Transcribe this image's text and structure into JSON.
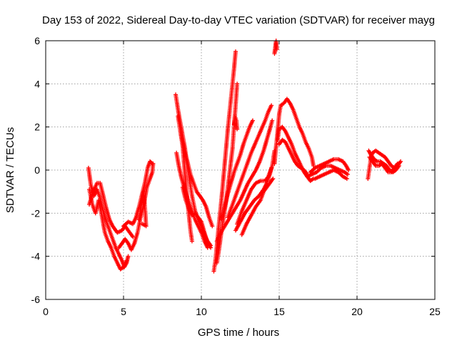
{
  "chart_data": {
    "type": "scatter",
    "title": "Day 153 of 2022, Sidereal Day-to-day VTEC variation (SDTVAR) for receiver mayg",
    "xlabel": "GPS time / hours",
    "ylabel": "SDTVAR / TECUs",
    "xlim": [
      0,
      25
    ],
    "ylim": [
      -6,
      6
    ],
    "xticks": [
      "0",
      "5",
      "10",
      "15",
      "20",
      "25"
    ],
    "yticks": [
      "-6",
      "-4",
      "-2",
      "0",
      "2",
      "4",
      "6"
    ],
    "grid": true,
    "marker": "plus",
    "colors": {
      "series": "#ff0000",
      "grid": "#a0a0a0",
      "axis": "#000000"
    },
    "series_tracks": [
      [
        [
          2.75,
          0.1
        ],
        [
          2.9,
          -0.7
        ],
        [
          3.1,
          -1.2
        ],
        [
          3.3,
          -0.9
        ],
        [
          3.5,
          -1.3
        ],
        [
          3.7,
          -1.9
        ],
        [
          3.9,
          -2.4
        ],
        [
          4.1,
          -2.8
        ],
        [
          4.3,
          -3.2
        ],
        [
          4.5,
          -3.6
        ],
        [
          4.7,
          -3.9
        ],
        [
          4.9,
          -4.2
        ],
        [
          5.05,
          -4.5
        ],
        [
          5.2,
          -4.3
        ],
        [
          5.3,
          -4.0
        ]
      ],
      [
        [
          2.8,
          -0.9
        ],
        [
          3.0,
          -1.6
        ],
        [
          3.2,
          -2.0
        ],
        [
          3.4,
          -1.4
        ],
        [
          3.6,
          -2.1
        ],
        [
          3.8,
          -2.9
        ],
        [
          4.0,
          -3.3
        ],
        [
          4.2,
          -3.6
        ],
        [
          4.4,
          -4.0
        ],
        [
          4.6,
          -4.3
        ],
        [
          4.8,
          -4.6
        ],
        [
          5.0,
          -4.5
        ],
        [
          5.2,
          -4.2
        ]
      ],
      [
        [
          2.8,
          -1.6
        ],
        [
          3.0,
          -1.1
        ],
        [
          3.3,
          -0.6
        ],
        [
          3.5,
          -0.6
        ],
        [
          3.7,
          -1.2
        ],
        [
          3.9,
          -1.8
        ],
        [
          4.1,
          -2.3
        ],
        [
          4.3,
          -2.6
        ],
        [
          4.6,
          -2.9
        ],
        [
          4.9,
          -2.8
        ],
        [
          5.1,
          -2.6
        ],
        [
          5.4,
          -2.9
        ],
        [
          5.6,
          -3.1
        ]
      ],
      [
        [
          4.7,
          -3.6
        ],
        [
          4.9,
          -3.4
        ],
        [
          5.1,
          -3.2
        ],
        [
          5.3,
          -3.4
        ],
        [
          5.5,
          -3.7
        ],
        [
          5.7,
          -3.4
        ],
        [
          5.9,
          -2.9
        ],
        [
          6.1,
          -2.2
        ],
        [
          6.3,
          -1.6
        ],
        [
          6.5,
          -0.8
        ],
        [
          6.7,
          -0.4
        ],
        [
          6.85,
          -0.1
        ],
        [
          6.9,
          0.3
        ]
      ],
      [
        [
          5.0,
          -2.6
        ],
        [
          5.3,
          -2.4
        ],
        [
          5.6,
          -2.5
        ],
        [
          5.8,
          -2.2
        ],
        [
          6.0,
          -1.7
        ],
        [
          6.2,
          -1.1
        ],
        [
          6.4,
          -0.5
        ],
        [
          6.55,
          0.1
        ],
        [
          6.7,
          0.4
        ],
        [
          6.85,
          0.3
        ]
      ],
      [
        [
          6.0,
          -2.3
        ],
        [
          6.15,
          -1.6
        ],
        [
          6.3,
          -1.0
        ],
        [
          6.4,
          -2.0
        ],
        [
          6.45,
          -2.6
        ],
        [
          6.2,
          -2.5
        ]
      ],
      [
        [
          8.35,
          3.5
        ],
        [
          8.5,
          2.8
        ],
        [
          8.65,
          2.2
        ],
        [
          8.8,
          1.6
        ],
        [
          8.95,
          1.0
        ],
        [
          9.1,
          0.2
        ],
        [
          9.25,
          -0.5
        ],
        [
          9.4,
          -1.2
        ],
        [
          9.6,
          -1.9
        ],
        [
          9.8,
          -2.3
        ],
        [
          10.0,
          -2.6
        ],
        [
          10.2,
          -3.0
        ],
        [
          10.4,
          -3.3
        ],
        [
          10.6,
          -3.5
        ]
      ],
      [
        [
          8.5,
          2.5
        ],
        [
          8.65,
          1.8
        ],
        [
          8.8,
          1.1
        ],
        [
          8.9,
          0.2
        ],
        [
          9.0,
          -0.6
        ],
        [
          9.1,
          -1.4
        ],
        [
          9.2,
          -2.1
        ],
        [
          9.3,
          -2.8
        ],
        [
          9.4,
          -3.3
        ]
      ],
      [
        [
          8.4,
          0.8
        ],
        [
          8.55,
          0.2
        ],
        [
          8.7,
          -0.3
        ],
        [
          8.85,
          -0.7
        ],
        [
          9.0,
          -1.1
        ],
        [
          9.2,
          -1.5
        ],
        [
          9.4,
          -1.9
        ],
        [
          9.6,
          -2.3
        ],
        [
          9.8,
          -2.6
        ],
        [
          10.0,
          -2.9
        ],
        [
          10.2,
          -3.3
        ],
        [
          10.4,
          -3.6
        ]
      ],
      [
        [
          8.7,
          1.6
        ],
        [
          8.9,
          0.9
        ],
        [
          9.1,
          0.4
        ],
        [
          9.3,
          -0.2
        ],
        [
          9.5,
          -0.6
        ],
        [
          9.7,
          -1.0
        ],
        [
          9.9,
          -1.2
        ],
        [
          10.1,
          -1.4
        ],
        [
          10.3,
          -1.7
        ],
        [
          10.5,
          -2.2
        ],
        [
          10.7,
          -2.6
        ]
      ],
      [
        [
          8.8,
          -0.8
        ],
        [
          9.0,
          -1.4
        ],
        [
          9.2,
          -1.8
        ],
        [
          9.4,
          -2.1
        ],
        [
          9.6,
          -2.0
        ],
        [
          9.8,
          -2.2
        ],
        [
          10.0,
          -2.4
        ],
        [
          10.2,
          -2.9
        ],
        [
          10.4,
          -3.4
        ],
        [
          10.6,
          -3.6
        ]
      ],
      [
        [
          10.8,
          -4.7
        ],
        [
          10.9,
          -4.2
        ],
        [
          11.0,
          -3.5
        ],
        [
          11.1,
          -2.7
        ],
        [
          11.2,
          -2.0
        ],
        [
          11.3,
          -1.3
        ],
        [
          11.4,
          -0.5
        ],
        [
          11.5,
          0.3
        ],
        [
          11.6,
          1.1
        ],
        [
          11.7,
          1.9
        ],
        [
          11.8,
          2.6
        ],
        [
          11.9,
          3.3
        ],
        [
          12.0,
          4.0
        ],
        [
          12.1,
          4.7
        ],
        [
          12.2,
          5.5
        ]
      ],
      [
        [
          11.0,
          -4.3
        ],
        [
          11.15,
          -3.6
        ],
        [
          11.3,
          -2.8
        ],
        [
          11.45,
          -2.1
        ],
        [
          11.6,
          -1.4
        ],
        [
          11.75,
          -0.5
        ],
        [
          11.9,
          0.4
        ],
        [
          12.0,
          1.0
        ],
        [
          12.1,
          2.0
        ],
        [
          12.2,
          3.0
        ],
        [
          12.3,
          4.0
        ]
      ],
      [
        [
          11.3,
          -2.3
        ],
        [
          11.5,
          -1.7
        ],
        [
          11.7,
          -1.1
        ],
        [
          11.9,
          -0.6
        ],
        [
          12.1,
          -0.1
        ],
        [
          12.3,
          0.3
        ],
        [
          12.5,
          0.7
        ],
        [
          12.7,
          1.2
        ],
        [
          12.9,
          1.6
        ],
        [
          13.1,
          2.0
        ],
        [
          13.3,
          2.3
        ]
      ],
      [
        [
          11.0,
          -3.3
        ],
        [
          11.25,
          -2.9
        ],
        [
          11.5,
          -2.6
        ],
        [
          11.75,
          -2.3
        ],
        [
          12.0,
          -2.0
        ],
        [
          12.25,
          -1.7
        ],
        [
          12.5,
          -1.4
        ],
        [
          12.75,
          -1.0
        ],
        [
          13.0,
          -0.6
        ],
        [
          13.25,
          -0.3
        ],
        [
          13.5,
          0.0
        ],
        [
          13.75,
          0.4
        ],
        [
          14.0,
          0.9
        ],
        [
          14.2,
          1.4
        ],
        [
          14.4,
          1.9
        ],
        [
          14.55,
          2.3
        ]
      ],
      [
        [
          11.7,
          -2.2
        ],
        [
          12.0,
          -1.6
        ],
        [
          12.3,
          -1.0
        ],
        [
          12.6,
          -0.4
        ],
        [
          12.9,
          0.2
        ],
        [
          13.2,
          0.8
        ],
        [
          13.5,
          1.3
        ],
        [
          13.8,
          1.8
        ],
        [
          14.1,
          2.3
        ],
        [
          14.3,
          2.7
        ],
        [
          14.5,
          3.0
        ]
      ],
      [
        [
          12.2,
          -2.8
        ],
        [
          12.5,
          -2.4
        ],
        [
          12.8,
          -2.0
        ],
        [
          13.1,
          -1.7
        ],
        [
          13.4,
          -1.4
        ],
        [
          13.7,
          -1.2
        ],
        [
          14.0,
          -0.9
        ],
        [
          14.2,
          -0.6
        ],
        [
          14.4,
          -0.2
        ],
        [
          14.55,
          0.2
        ],
        [
          14.7,
          0.9
        ]
      ],
      [
        [
          12.3,
          -2.5
        ],
        [
          12.6,
          -1.9
        ],
        [
          12.9,
          -1.4
        ],
        [
          13.2,
          -0.9
        ],
        [
          13.5,
          -0.6
        ],
        [
          13.8,
          -0.5
        ],
        [
          14.1,
          -0.5
        ],
        [
          14.3,
          -0.3
        ],
        [
          14.5,
          0.1
        ]
      ],
      [
        [
          12.6,
          -3.0
        ],
        [
          12.9,
          -2.5
        ],
        [
          13.2,
          -2.1
        ],
        [
          13.5,
          -1.7
        ],
        [
          13.8,
          -1.4
        ],
        [
          14.0,
          -1.0
        ],
        [
          14.2,
          -0.8
        ],
        [
          14.4,
          -0.6
        ],
        [
          14.6,
          -0.4
        ]
      ],
      [
        [
          12.1,
          2.1
        ],
        [
          12.15,
          2.5
        ],
        [
          12.25,
          2.3
        ],
        [
          12.3,
          1.9
        ]
      ],
      [
        [
          14.7,
          5.4
        ],
        [
          14.75,
          5.7
        ],
        [
          14.8,
          6.0
        ],
        [
          14.85,
          5.6
        ]
      ],
      [
        [
          14.7,
          0.3
        ],
        [
          14.8,
          1.1
        ],
        [
          14.9,
          1.8
        ],
        [
          15.0,
          2.6
        ],
        [
          15.1,
          3.0
        ],
        [
          15.3,
          3.1
        ],
        [
          15.5,
          3.3
        ],
        [
          15.7,
          3.1
        ],
        [
          15.9,
          2.8
        ],
        [
          16.1,
          2.4
        ],
        [
          16.3,
          2.0
        ],
        [
          16.5,
          1.7
        ],
        [
          16.7,
          1.3
        ],
        [
          16.9,
          1.0
        ],
        [
          17.1,
          0.6
        ],
        [
          17.2,
          0.2
        ]
      ],
      [
        [
          14.9,
          1.4
        ],
        [
          15.0,
          1.9
        ],
        [
          15.2,
          2.0
        ],
        [
          15.4,
          1.8
        ],
        [
          15.6,
          1.5
        ],
        [
          15.8,
          1.2
        ],
        [
          16.0,
          0.8
        ],
        [
          16.2,
          0.5
        ],
        [
          16.4,
          0.2
        ],
        [
          16.6,
          -0.1
        ],
        [
          16.8,
          -0.3
        ],
        [
          17.0,
          -0.5
        ],
        [
          17.2,
          -0.4
        ]
      ],
      [
        [
          15.0,
          1.2
        ],
        [
          15.2,
          1.4
        ],
        [
          15.4,
          1.3
        ],
        [
          15.6,
          1.0
        ],
        [
          15.8,
          0.7
        ],
        [
          16.0,
          0.4
        ],
        [
          16.2,
          0.2
        ],
        [
          16.4,
          0.1
        ],
        [
          16.6,
          0.0
        ],
        [
          16.8,
          -0.2
        ]
      ],
      [
        [
          17.0,
          -0.1
        ],
        [
          17.3,
          0.1
        ],
        [
          17.6,
          0.2
        ],
        [
          17.9,
          0.3
        ],
        [
          18.2,
          0.4
        ],
        [
          18.5,
          0.5
        ],
        [
          18.8,
          0.5
        ],
        [
          19.1,
          0.4
        ],
        [
          19.3,
          0.2
        ],
        [
          19.45,
          0.0
        ]
      ],
      [
        [
          16.8,
          -0.3
        ],
        [
          17.1,
          -0.2
        ],
        [
          17.4,
          -0.1
        ],
        [
          17.7,
          0.1
        ],
        [
          18.0,
          0.2
        ],
        [
          18.3,
          0.2
        ],
        [
          18.6,
          0.1
        ],
        [
          18.9,
          0.0
        ],
        [
          19.2,
          -0.1
        ],
        [
          19.4,
          -0.2
        ]
      ],
      [
        [
          17.3,
          -0.4
        ],
        [
          17.6,
          -0.3
        ],
        [
          17.9,
          -0.2
        ],
        [
          18.2,
          -0.1
        ],
        [
          18.5,
          0.0
        ],
        [
          18.8,
          -0.1
        ],
        [
          19.1,
          -0.3
        ],
        [
          19.35,
          -0.4
        ]
      ],
      [
        [
          20.7,
          -0.4
        ],
        [
          20.8,
          0.1
        ],
        [
          20.9,
          0.6
        ],
        [
          21.0,
          0.8
        ],
        [
          21.2,
          0.9
        ],
        [
          21.4,
          0.8
        ],
        [
          21.6,
          0.7
        ],
        [
          21.8,
          0.6
        ],
        [
          22.0,
          0.4
        ],
        [
          22.2,
          0.2
        ],
        [
          22.4,
          0.1
        ],
        [
          22.6,
          0.2
        ],
        [
          22.8,
          0.4
        ]
      ],
      [
        [
          20.75,
          0.9
        ],
        [
          20.9,
          0.7
        ],
        [
          21.1,
          0.5
        ],
        [
          21.3,
          0.4
        ],
        [
          21.5,
          0.4
        ],
        [
          21.7,
          0.3
        ],
        [
          21.9,
          0.2
        ],
        [
          22.1,
          0.0
        ],
        [
          22.3,
          -0.1
        ],
        [
          22.5,
          0.0
        ],
        [
          22.7,
          0.2
        ]
      ],
      [
        [
          20.8,
          0.6
        ],
        [
          21.0,
          0.4
        ],
        [
          21.2,
          0.2
        ],
        [
          21.4,
          0.2
        ],
        [
          21.6,
          0.3
        ],
        [
          21.8,
          0.1
        ],
        [
          22.0,
          -0.1
        ],
        [
          22.2,
          -0.1
        ],
        [
          22.4,
          0.1
        ],
        [
          22.6,
          0.3
        ]
      ]
    ]
  }
}
